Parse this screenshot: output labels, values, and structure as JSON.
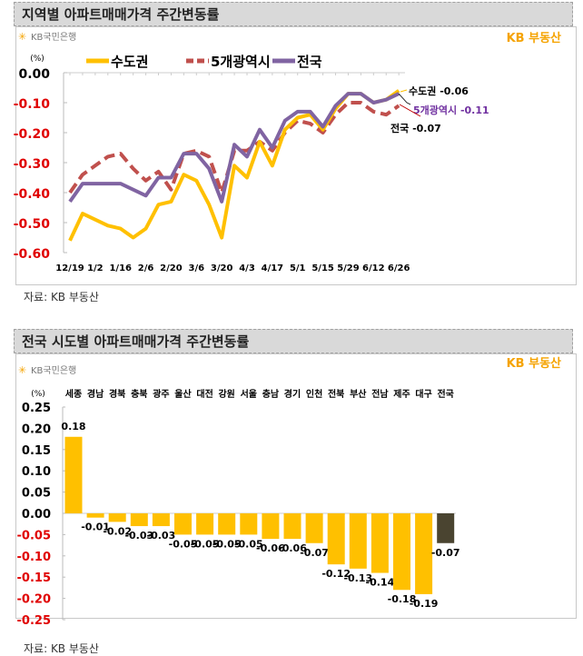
{
  "brand": {
    "bank": "KB국민은행",
    "logo": "KB 부동산",
    "accent": "#f5a300"
  },
  "source_note": "자료: KB 부동산",
  "chart_data": [
    {
      "type": "line",
      "title": "지역별 아파트매매가격 주간변동률",
      "ylabel": "(%)",
      "ylim": [
        -0.6,
        0.0
      ],
      "yticks": [
        "0.00",
        "-0.10",
        "-0.20",
        "-0.30",
        "-0.40",
        "-0.50",
        "-0.60"
      ],
      "x_tick_labels": [
        "12/19",
        "",
        "1/2",
        "",
        "1/16",
        "",
        "2/6",
        "",
        "2/20",
        "",
        "3/6",
        "",
        "3/20",
        "",
        "4/3",
        "",
        "4/17",
        "",
        "5/1",
        "",
        "5/15",
        "",
        "5/29",
        "",
        "6/12",
        "",
        "6/26"
      ],
      "legend_position": "top",
      "series": [
        {
          "name": "수도권",
          "color": "#ffc000",
          "style": "solid",
          "values": [
            -0.56,
            -0.47,
            -0.49,
            -0.51,
            -0.52,
            -0.55,
            -0.52,
            -0.44,
            -0.43,
            -0.34,
            -0.36,
            -0.44,
            -0.55,
            -0.31,
            -0.35,
            -0.23,
            -0.31,
            -0.19,
            -0.15,
            -0.14,
            -0.19,
            -0.12,
            -0.07,
            -0.07,
            -0.1,
            -0.09,
            -0.06
          ],
          "end_label": "수도권 -0.06"
        },
        {
          "name": "5개광역시",
          "color": "#c0504d",
          "style": "dashed",
          "values": [
            -0.4,
            -0.34,
            -0.31,
            -0.28,
            -0.27,
            -0.32,
            -0.36,
            -0.33,
            -0.39,
            -0.27,
            -0.26,
            -0.28,
            -0.4,
            -0.26,
            -0.26,
            -0.23,
            -0.26,
            -0.2,
            -0.16,
            -0.17,
            -0.2,
            -0.14,
            -0.1,
            -0.1,
            -0.13,
            -0.14,
            -0.11
          ],
          "end_label": "5개광역시 -0.11"
        },
        {
          "name": "전국",
          "color": "#8064a2",
          "style": "solid",
          "values": [
            -0.43,
            -0.37,
            -0.37,
            -0.37,
            -0.37,
            -0.39,
            -0.41,
            -0.35,
            -0.35,
            -0.27,
            -0.27,
            -0.32,
            -0.43,
            -0.24,
            -0.28,
            -0.19,
            -0.25,
            -0.16,
            -0.13,
            -0.13,
            -0.18,
            -0.11,
            -0.07,
            -0.07,
            -0.1,
            -0.09,
            -0.07
          ],
          "end_label": "전국 -0.07"
        }
      ]
    },
    {
      "type": "bar",
      "title": "전국 시도별 아파트매매가격 주간변동률",
      "ylabel": "(%)",
      "ylim": [
        -0.25,
        0.25
      ],
      "yticks": [
        "0.25",
        "0.20",
        "0.15",
        "0.10",
        "0.05",
        "0.00",
        "-0.05",
        "-0.10",
        "-0.15",
        "-0.20",
        "-0.25"
      ],
      "categories": [
        "세종",
        "경남",
        "경북",
        "충북",
        "광주",
        "울산",
        "대전",
        "강원",
        "서울",
        "충남",
        "경기",
        "인천",
        "전북",
        "부산",
        "전남",
        "제주",
        "대구",
        "전국"
      ],
      "values": [
        0.18,
        -0.01,
        -0.02,
        -0.03,
        -0.03,
        -0.05,
        -0.05,
        -0.05,
        -0.05,
        -0.06,
        -0.06,
        -0.07,
        -0.12,
        -0.13,
        -0.14,
        -0.18,
        -0.19,
        -0.07
      ],
      "data_labels": [
        "0.18",
        "-0.01",
        "-0.02",
        "-0.03",
        "-0.03",
        "-0.05",
        "-0.05",
        "-0.05",
        "-0.05",
        "-0.06",
        "-0.06",
        "-0.07",
        "-0.12",
        "-0.13",
        "-0.14",
        "-0.18",
        "-0.19",
        "-0.07"
      ],
      "bar_color": "#ffc000",
      "highlight_color": "#4a4430",
      "negative_tick_color": "#e00000"
    }
  ]
}
